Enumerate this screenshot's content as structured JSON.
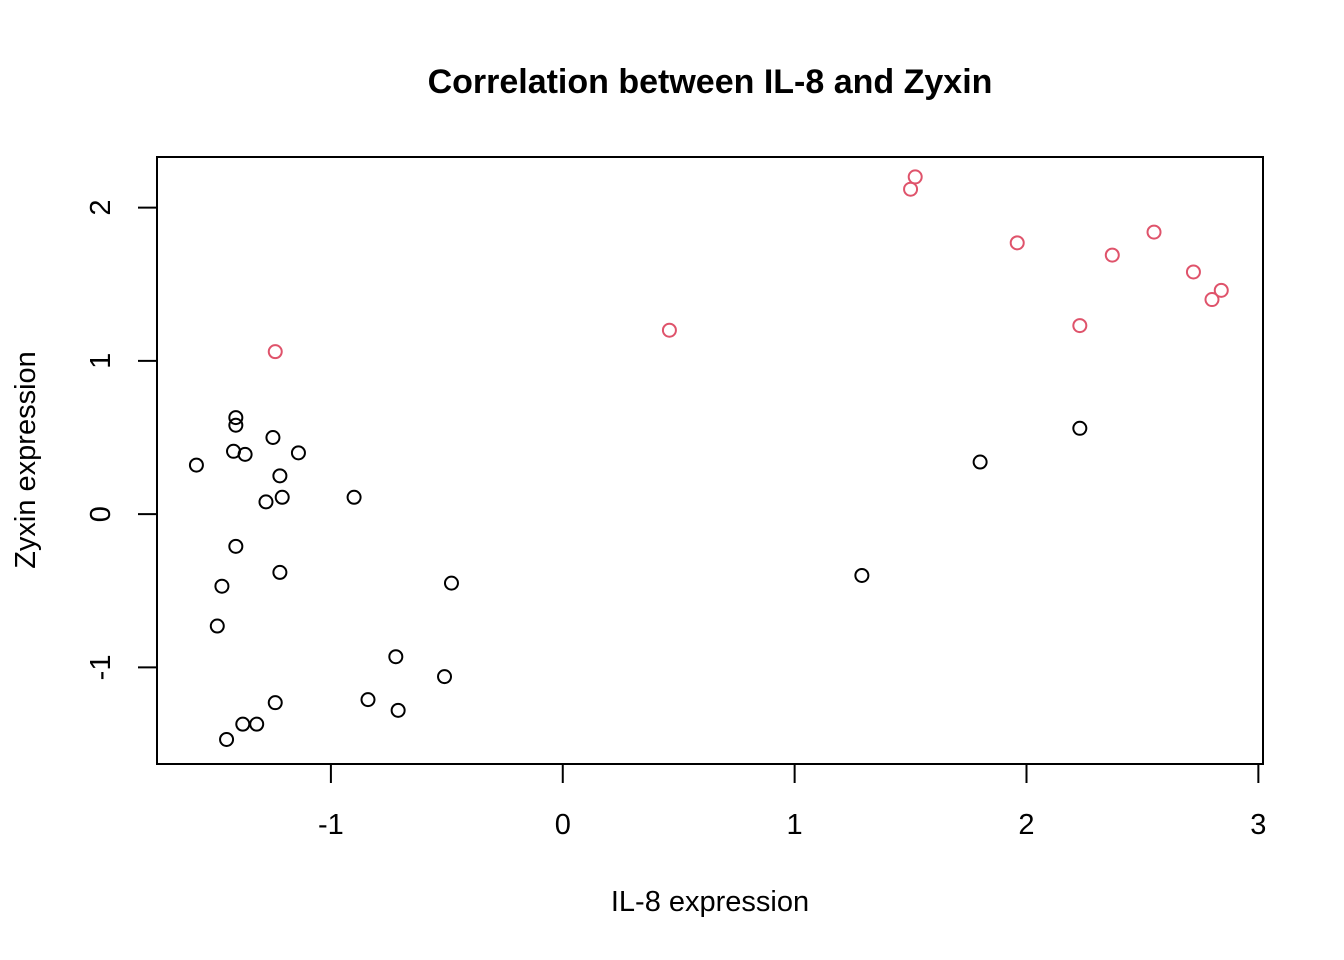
{
  "chart_data": {
    "type": "scatter",
    "title": "Correlation between IL-8 and Zyxin",
    "xlabel": "IL-8 expression",
    "ylabel": "Zyxin expression",
    "xlim": [
      -1.75,
      3.02
    ],
    "ylim": [
      -1.63,
      2.33
    ],
    "xticks": [
      -1,
      0,
      1,
      2,
      3
    ],
    "yticks": [
      -1,
      0,
      1,
      2
    ],
    "grid": false,
    "legend": "none",
    "colors": {
      "group1": "#000000",
      "group2": "#DF536B"
    },
    "series": [
      {
        "color": "#000000",
        "points": [
          [
            -1.58,
            0.32
          ],
          [
            -1.41,
            0.63
          ],
          [
            -1.41,
            0.58
          ],
          [
            -1.42,
            0.41
          ],
          [
            -1.37,
            0.39
          ],
          [
            -1.25,
            0.5
          ],
          [
            -1.22,
            0.25
          ],
          [
            -1.21,
            0.11
          ],
          [
            -1.28,
            0.08
          ],
          [
            -1.14,
            0.4
          ],
          [
            -0.9,
            0.11
          ],
          [
            -1.41,
            -0.21
          ],
          [
            -1.22,
            -0.38
          ],
          [
            -1.47,
            -0.47
          ],
          [
            -1.49,
            -0.73
          ],
          [
            -0.48,
            -0.45
          ],
          [
            -0.72,
            -0.93
          ],
          [
            -0.51,
            -1.06
          ],
          [
            -0.84,
            -1.21
          ],
          [
            -0.71,
            -1.28
          ],
          [
            -1.24,
            -1.23
          ],
          [
            -1.32,
            -1.37
          ],
          [
            -1.38,
            -1.37
          ],
          [
            -1.45,
            -1.47
          ],
          [
            1.29,
            -0.4
          ],
          [
            1.8,
            0.34
          ],
          [
            2.23,
            0.56
          ]
        ]
      },
      {
        "color": "#DF536B",
        "points": [
          [
            -1.24,
            1.06
          ],
          [
            0.46,
            1.2
          ],
          [
            1.5,
            2.12
          ],
          [
            1.52,
            2.2
          ],
          [
            1.96,
            1.77
          ],
          [
            2.23,
            1.23
          ],
          [
            2.37,
            1.69
          ],
          [
            2.55,
            1.84
          ],
          [
            2.72,
            1.58
          ],
          [
            2.8,
            1.4
          ],
          [
            2.84,
            1.46
          ]
        ]
      }
    ]
  }
}
